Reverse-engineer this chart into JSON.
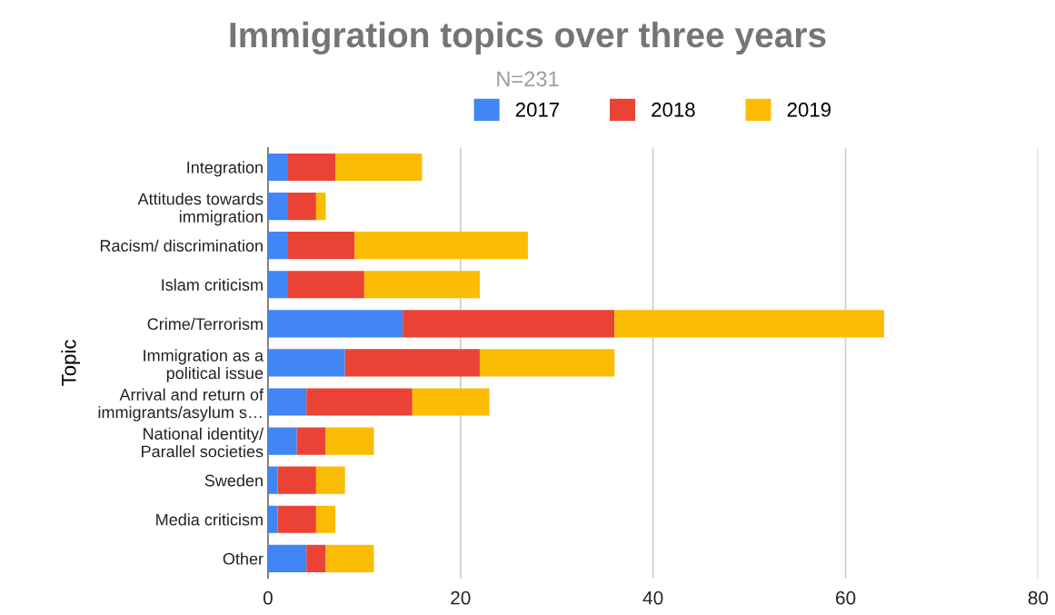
{
  "chart_data": {
    "type": "bar",
    "orientation": "horizontal",
    "stacked": true,
    "title": "Immigration topics over three years",
    "subtitle": "N=231",
    "ylabel": "Topic",
    "categories": [
      "Integration",
      "Attitudes towards\nimmigration",
      "Racism/ discrimination",
      "Islam criticism",
      "Crime/Terrorism",
      "Immigration as a\npolitical issue",
      "Arrival and return of\nimmigrants/asylum s…",
      "National identity/\nParallel societies",
      "Sweden",
      "Media criticism",
      "Other"
    ],
    "series": [
      {
        "name": "2017",
        "color": "#4285f4",
        "values": [
          2,
          2,
          2,
          2,
          14,
          8,
          4,
          3,
          1,
          1,
          4
        ]
      },
      {
        "name": "2018",
        "color": "#ea4335",
        "values": [
          5,
          3,
          7,
          8,
          22,
          14,
          11,
          3,
          4,
          4,
          2
        ]
      },
      {
        "name": "2019",
        "color": "#fbbc04",
        "values": [
          9,
          1,
          18,
          12,
          28,
          14,
          8,
          5,
          3,
          2,
          5
        ]
      }
    ],
    "xlim": [
      0,
      80
    ],
    "xticks": [
      0,
      20,
      40,
      60,
      80
    ],
    "grid": "x",
    "legend": "top"
  }
}
